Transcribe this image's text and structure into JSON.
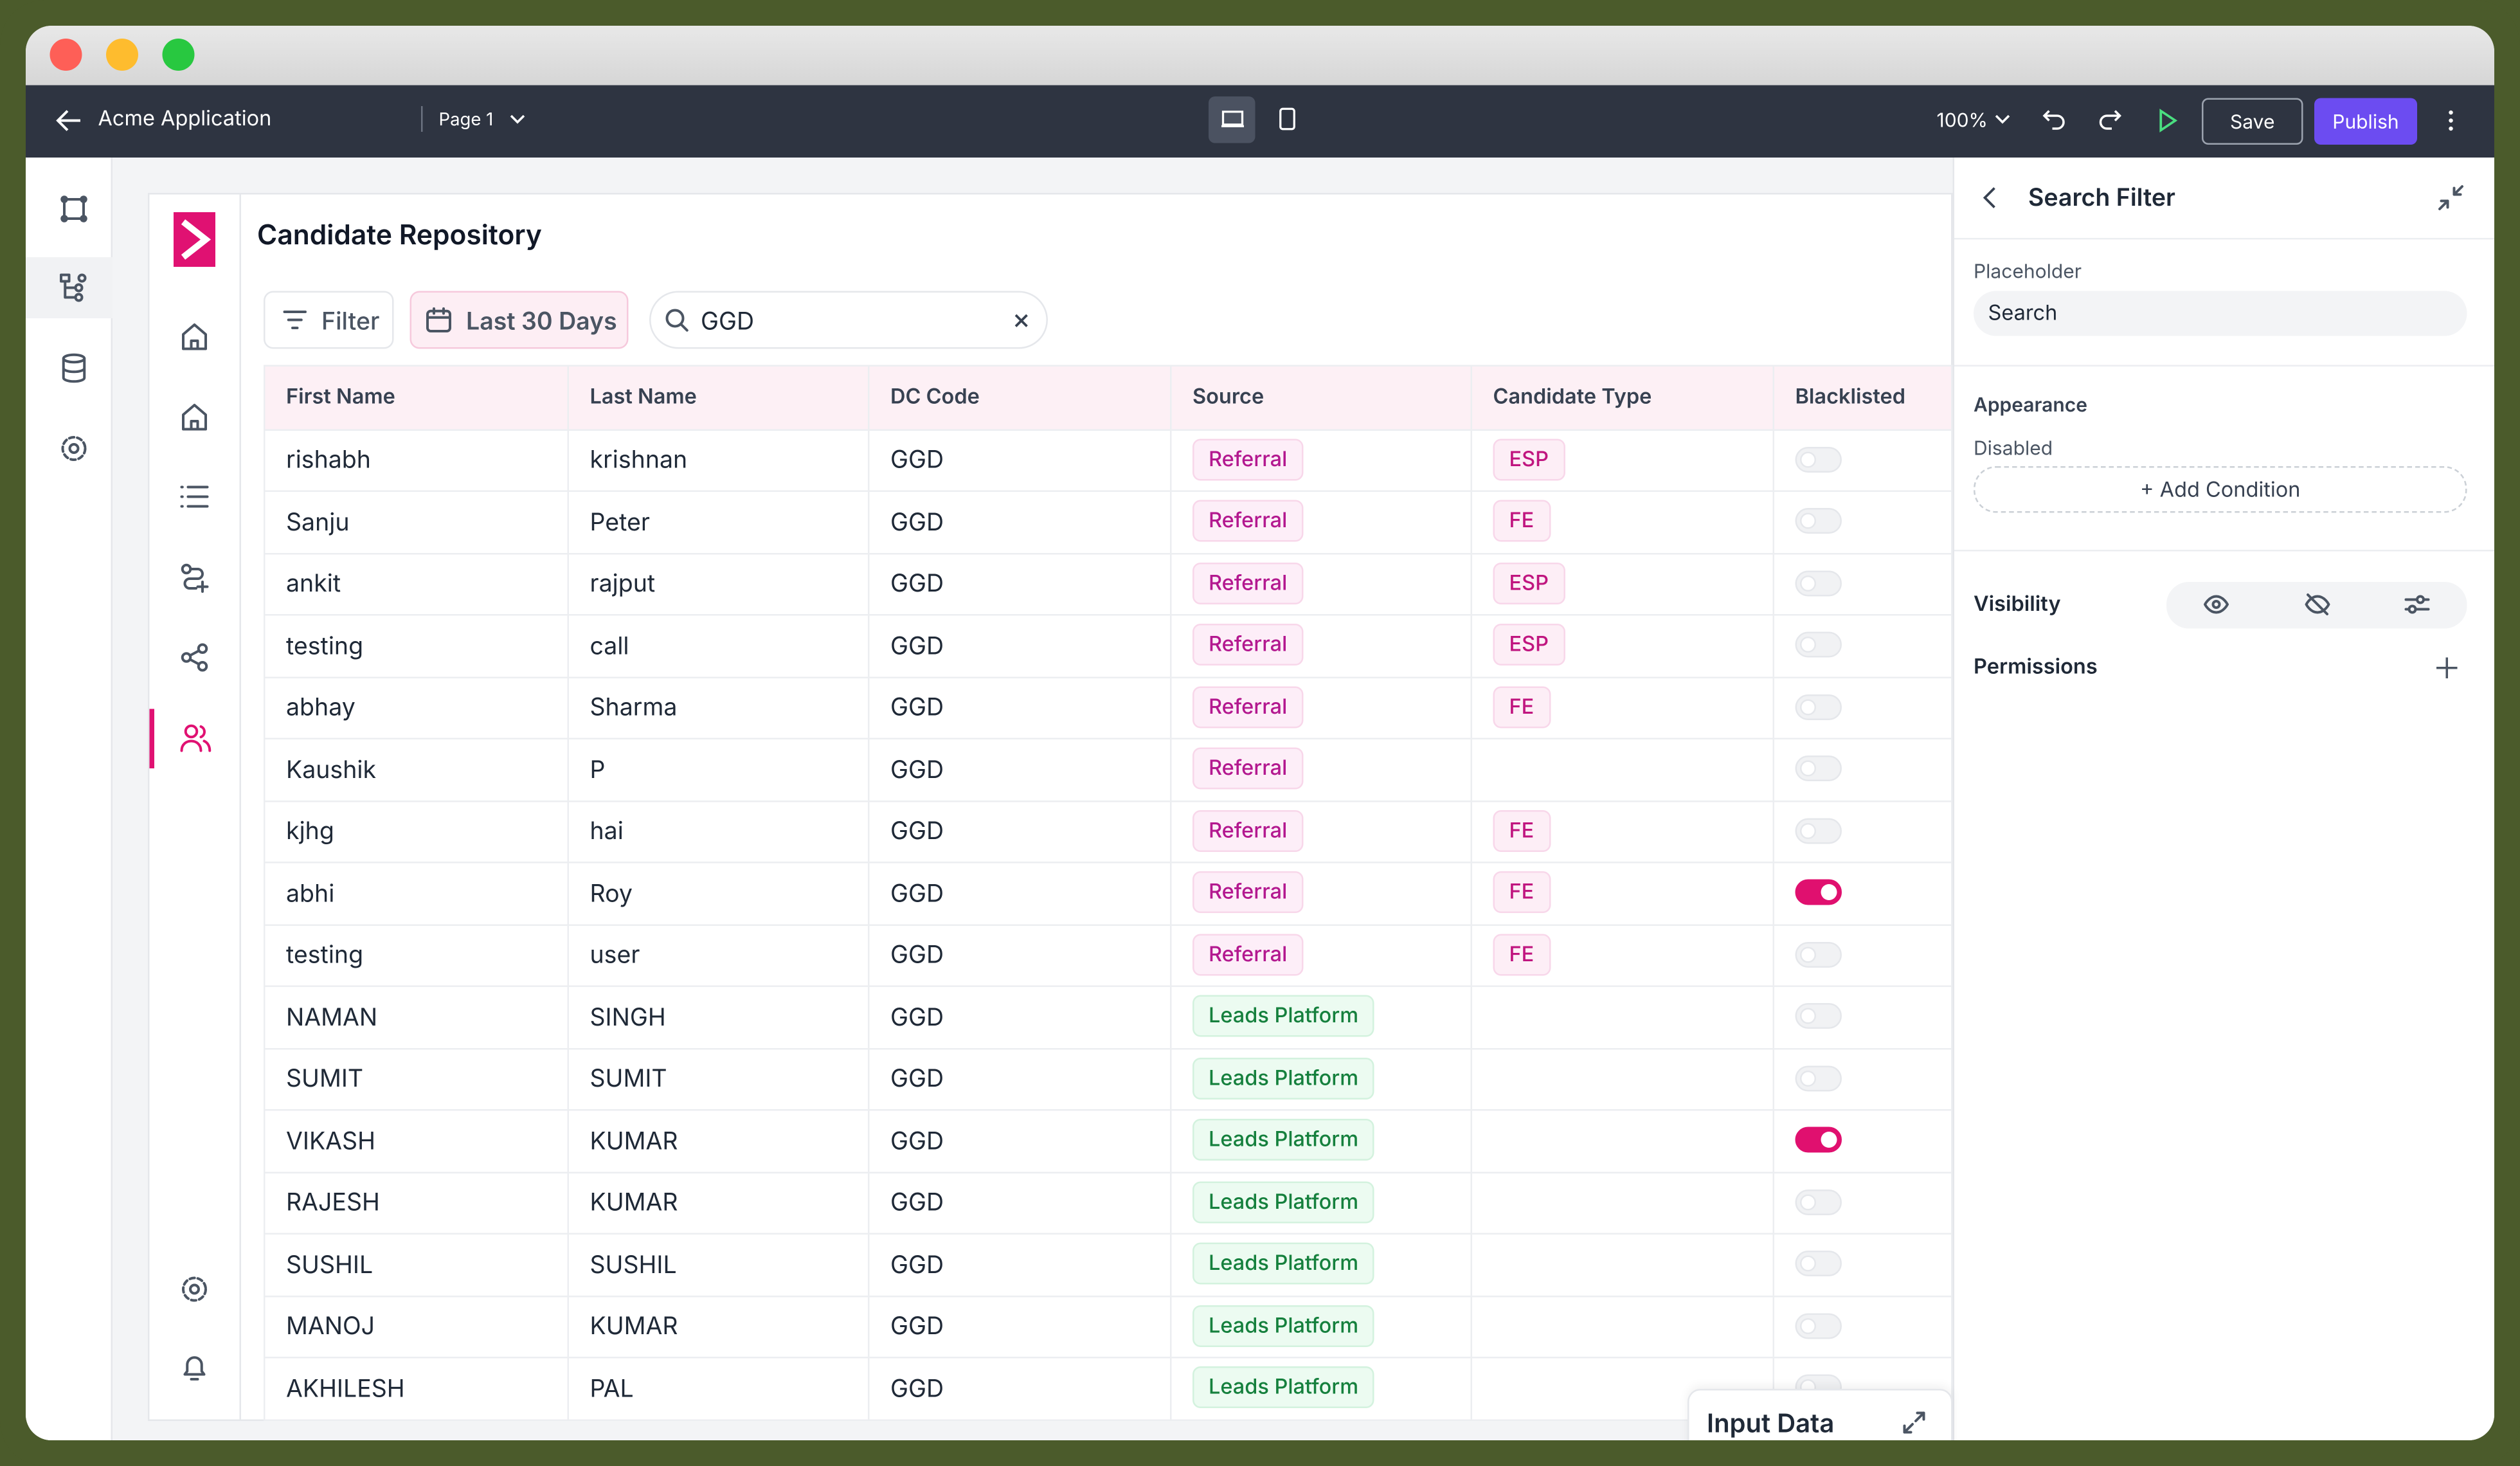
{
  "toolbar": {
    "app_name": "Acme Application",
    "page": "Page 1",
    "zoom": "100%",
    "save": "Save",
    "publish": "Publish"
  },
  "app": {
    "title": "Candidate Repository",
    "filter": "Filter",
    "date_range": "Last 30 Days",
    "search_value": "GGD"
  },
  "table": {
    "columns": [
      "First Name",
      "Last Name",
      "DC Code",
      "Source",
      "Candidate Type",
      "Blacklisted"
    ],
    "rows": [
      [
        "rishabh",
        "krishnan",
        "GGD",
        "Referral",
        "ESP"
      ],
      [
        "Sanju",
        "Peter",
        "GGD",
        "Referral",
        "FE"
      ],
      [
        "ankit",
        "rajput",
        "GGD",
        "Referral",
        "ESP"
      ],
      [
        "testing",
        "call",
        "GGD",
        "Referral",
        "ESP"
      ],
      [
        "abhay",
        "Sharma",
        "GGD",
        "Referral",
        "FE"
      ],
      [
        "Kaushik",
        "P",
        "GGD",
        "Referral",
        null
      ],
      [
        "kjhg",
        "hai",
        "GGD",
        "Referral",
        "FE"
      ],
      [
        "abhi",
        "Roy",
        "GGD",
        "Referral",
        "FE"
      ],
      [
        "testing",
        "user",
        "GGD",
        "Referral",
        "FE"
      ],
      [
        "NAMAN",
        "SINGH",
        "GGD",
        "Leads Platform",
        null
      ],
      [
        "SUMIT",
        "SUMIT",
        "GGD",
        "Leads Platform",
        null
      ],
      [
        "VIKASH",
        "KUMAR",
        "GGD",
        "Leads Platform",
        null
      ],
      [
        "RAJESH",
        "KUMAR",
        "GGD",
        "Leads Platform",
        null
      ],
      [
        "SUSHIL",
        "SUSHIL",
        "GGD",
        "Leads Platform",
        null
      ],
      [
        "MANOJ",
        "KUMAR",
        "GGD",
        "Leads Platform",
        null
      ],
      [
        "AKHILESH",
        "PAL",
        "GGD",
        "Leads Platform",
        null
      ]
    ],
    "blacklisted": [
      false,
      false,
      false,
      false,
      false,
      false,
      false,
      true,
      false,
      false,
      false,
      true,
      false,
      false,
      false,
      false
    ],
    "source_colors": {
      "Referral": {
        "fg": "#b3188f",
        "bg": "#fdeef8"
      },
      "Leads Platform": {
        "fg": "#15803d",
        "bg": "#ecfbf1"
      }
    },
    "type_color": {
      "fg": "#c0157f",
      "bg": "#fdeef6"
    },
    "toggle_on_color": "#e0106f"
  },
  "panel": {
    "title": "Search Filter",
    "placeholder_label": "Placeholder",
    "placeholder_value": "Search",
    "appearance": "Appearance",
    "disabled": "Disabled",
    "add_condition": "+ Add Condition",
    "visibility": "Visibility",
    "permissions": "Permissions"
  },
  "floating_tab": "Input Data"
}
